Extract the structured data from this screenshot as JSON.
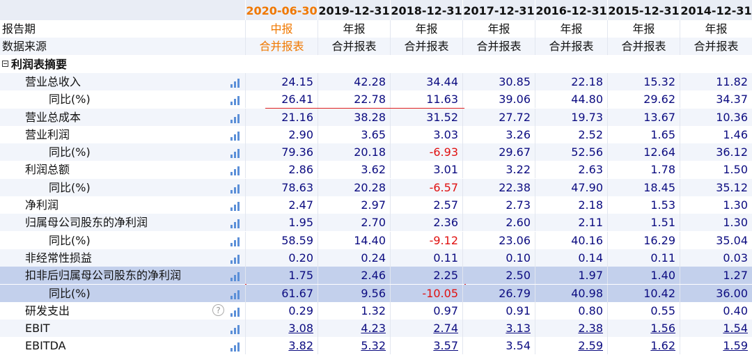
{
  "table": {
    "periods": [
      "2020-06-30",
      "2019-12-31",
      "2018-12-31",
      "2017-12-31",
      "2016-12-31",
      "2015-12-31",
      "2014-12-31"
    ],
    "report_type": {
      "label": "报告期",
      "values": [
        "中报",
        "年报",
        "年报",
        "年报",
        "年报",
        "年报",
        "年报"
      ]
    },
    "source": {
      "label": "数据来源",
      "values": [
        "合并报表",
        "合并报表",
        "合并报表",
        "合并报表",
        "合并报表",
        "合并报表",
        "合并报表"
      ]
    },
    "section": {
      "title": "利润表摘要",
      "items": [
        {
          "label": "营业总收入",
          "values": [
            "24.15",
            "42.28",
            "34.44",
            "30.85",
            "22.18",
            "15.32",
            "11.82"
          ],
          "sub": [
            {
              "label": "同比(%)",
              "values": [
                "26.41",
                "22.78",
                "11.63",
                "39.06",
                "44.80",
                "29.62",
                "34.37"
              ]
            }
          ]
        },
        {
          "label": "营业总成本",
          "values": [
            "21.16",
            "38.28",
            "31.52",
            "27.72",
            "19.73",
            "13.67",
            "10.36"
          ]
        },
        {
          "label": "营业利润",
          "values": [
            "2.90",
            "3.65",
            "3.03",
            "3.26",
            "2.52",
            "1.65",
            "1.46"
          ],
          "sub": [
            {
              "label": "同比(%)",
              "values": [
                "79.36",
                "20.18",
                "-6.93",
                "29.67",
                "52.56",
                "12.64",
                "36.12"
              ]
            }
          ]
        },
        {
          "label": "利润总额",
          "values": [
            "2.86",
            "3.62",
            "3.01",
            "3.22",
            "2.63",
            "1.78",
            "1.50"
          ],
          "sub": [
            {
              "label": "同比(%)",
              "values": [
                "78.63",
                "20.28",
                "-6.57",
                "22.38",
                "47.90",
                "18.45",
                "35.12"
              ]
            }
          ]
        },
        {
          "label": "净利润",
          "values": [
            "2.47",
            "2.97",
            "2.57",
            "2.73",
            "2.18",
            "1.53",
            "1.30"
          ]
        },
        {
          "label": "归属母公司股东的净利润",
          "values": [
            "1.95",
            "2.70",
            "2.36",
            "2.60",
            "2.11",
            "1.51",
            "1.30"
          ],
          "sub": [
            {
              "label": "同比(%)",
              "values": [
                "58.59",
                "14.40",
                "-9.12",
                "23.06",
                "40.16",
                "16.29",
                "35.04"
              ]
            }
          ]
        },
        {
          "label": "非经常性损益",
          "values": [
            "0.20",
            "0.24",
            "0.11",
            "0.10",
            "0.14",
            "0.11",
            "0.03"
          ]
        },
        {
          "label": "扣非后归属母公司股东的净利润",
          "values": [
            "1.75",
            "2.46",
            "2.25",
            "2.50",
            "1.97",
            "1.40",
            "1.27"
          ],
          "sub": [
            {
              "label": "同比(%)",
              "values": [
                "61.67",
                "9.56",
                "-10.05",
                "26.79",
                "40.98",
                "10.42",
                "36.00"
              ]
            }
          ]
        },
        {
          "label": "研发支出",
          "values": [
            "0.29",
            "1.32",
            "0.97",
            "0.91",
            "0.80",
            "0.55",
            "0.40"
          ]
        },
        {
          "label": "EBIT",
          "values": [
            "3.08",
            "4.23",
            "2.74",
            "3.13",
            "2.38",
            "1.56",
            "1.54"
          ]
        },
        {
          "label": "EBITDA",
          "values": [
            "3.82",
            "5.32",
            "3.57",
            "3.54",
            "2.59",
            "1.62",
            "1.59"
          ]
        }
      ]
    }
  }
}
